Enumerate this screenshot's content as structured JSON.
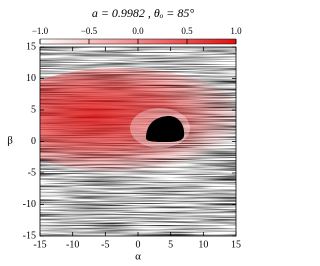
{
  "chart_data": {
    "type": "heatmap",
    "title": "a = 0.9982 , θₒ = 85°",
    "xlabel": "α",
    "ylabel": "β",
    "xlim": [
      -15,
      15
    ],
    "ylim": [
      -15,
      15
    ],
    "xticks": [
      -15,
      -10,
      -5,
      0,
      5,
      10,
      15
    ],
    "yticks": [
      -15,
      -10,
      -5,
      0,
      5,
      10,
      15
    ],
    "colorbar": {
      "clim": [
        -1,
        1
      ],
      "colors": [
        "#ffffff",
        "#e01010"
      ],
      "ticks": [
        {
          "value": -1,
          "label": "−1.0"
        },
        {
          "value": -0.5,
          "label": "−0.5"
        },
        {
          "value": 0,
          "label": "0.0"
        },
        0.5,
        {
          "value": 1,
          "label": "1.0"
        }
      ]
    }
  }
}
